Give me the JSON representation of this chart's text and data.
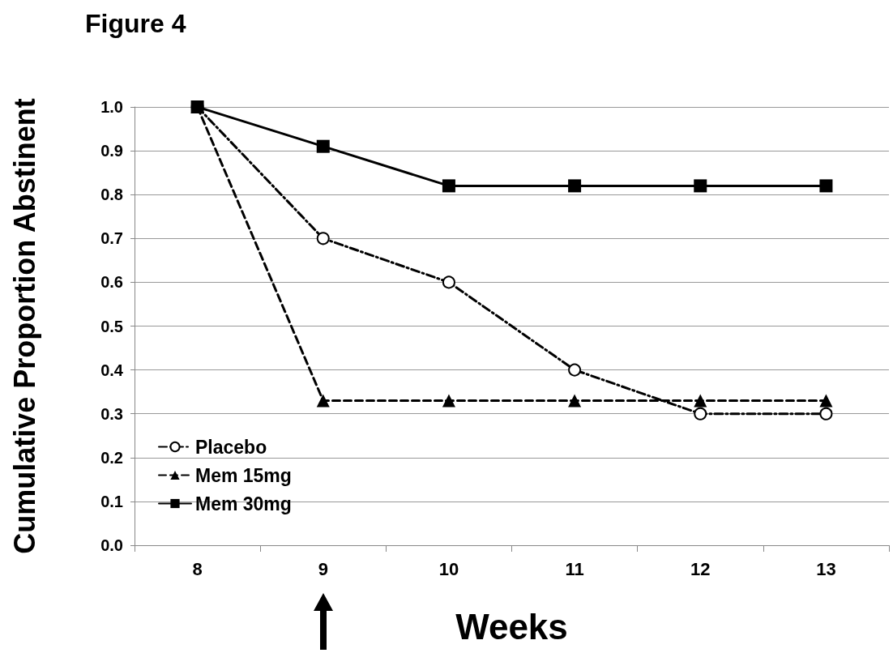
{
  "chart_data": {
    "type": "line",
    "title": "Figure 4",
    "xlabel": "Weeks",
    "ylabel": "Cumulative Proportion Abstinent",
    "categories": [
      "8",
      "9",
      "10",
      "11",
      "12",
      "13"
    ],
    "series": [
      {
        "name": "Placebo",
        "color": "#000000",
        "marker": "circle",
        "line_style": "dashdot",
        "values": [
          1.0,
          0.7,
          0.6,
          0.4,
          0.3,
          0.3
        ]
      },
      {
        "name": "Mem 15mg",
        "color": "#000000",
        "marker": "triangle",
        "line_style": "dashed",
        "values": [
          1.0,
          0.33,
          0.33,
          0.33,
          0.33,
          0.33
        ]
      },
      {
        "name": "Mem 30mg",
        "color": "#000000",
        "marker": "square",
        "line_style": "solid",
        "values": [
          1.0,
          0.91,
          0.82,
          0.82,
          0.82,
          0.82
        ]
      }
    ],
    "ylim": [
      0,
      1
    ],
    "yticks": [
      {
        "value": 0,
        "label": "0.0"
      },
      {
        "value": 0.1,
        "label": "0.1"
      },
      {
        "value": 0.2,
        "label": "0.2"
      },
      {
        "value": 0.3,
        "label": "0.3"
      },
      {
        "value": 0.4,
        "label": "0.4"
      },
      {
        "value": 0.5,
        "label": "0.5"
      },
      {
        "value": 0.6,
        "label": "0.6"
      },
      {
        "value": 0.7,
        "label": "0.7"
      },
      {
        "value": 0.8,
        "label": "0.8"
      },
      {
        "value": 0.9,
        "label": "0.9"
      },
      {
        "value": 1,
        "label": "1.0"
      }
    ],
    "grid": "y",
    "legend": "bottom left"
  }
}
